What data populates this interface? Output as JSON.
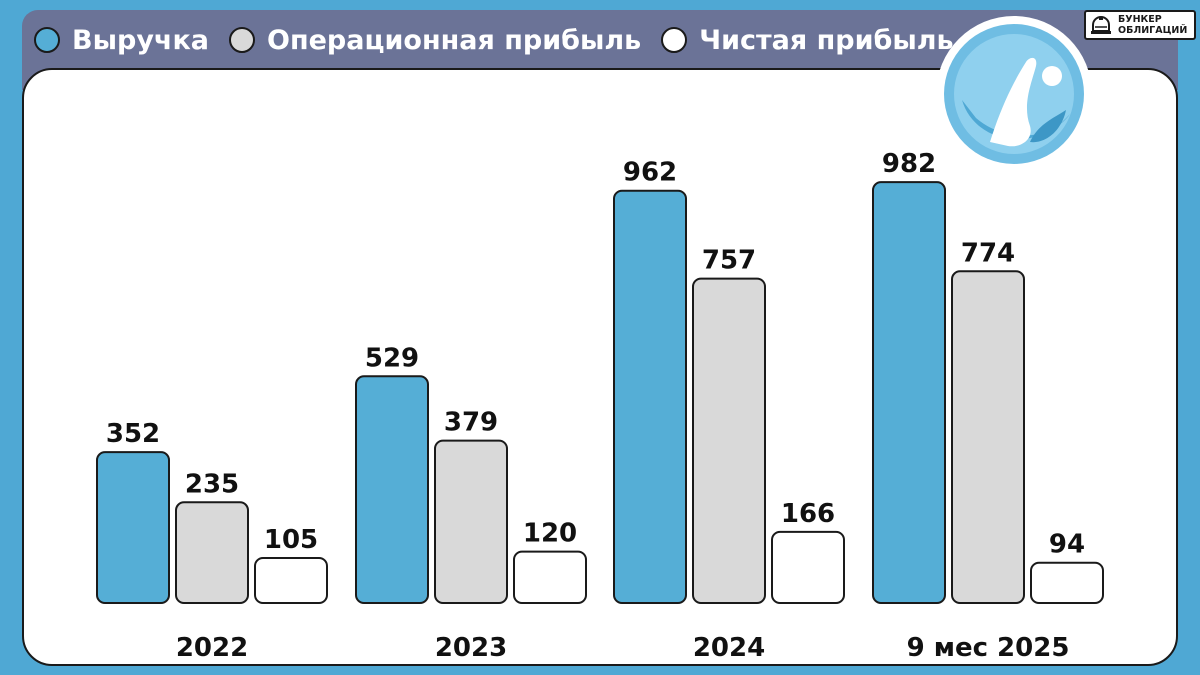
{
  "brand": {
    "line1": "БУНКЕР",
    "line2": "ОБЛИГАЦИЙ"
  },
  "colors": {
    "background": "#4fa8d4",
    "header": "#6b7397",
    "revenue": "#55aed6",
    "operating": "#d9d9d9",
    "net": "#ffffff"
  },
  "chart_data": {
    "type": "bar",
    "categories": [
      "2022",
      "2023",
      "2024",
      "9 мес 2025"
    ],
    "series": [
      {
        "name": "Выручка",
        "values": [
          352,
          529,
          962,
          982
        ],
        "color": "#55aed6"
      },
      {
        "name": "Операционная прибыль",
        "values": [
          235,
          379,
          757,
          774
        ],
        "color": "#d9d9d9"
      },
      {
        "name": "Чистая прибыль",
        "values": [
          105,
          120,
          166,
          94
        ],
        "color": "#ffffff"
      }
    ],
    "title": "",
    "xlabel": "",
    "ylabel": "",
    "ylim": [
      0,
      1000
    ],
    "grid": false,
    "legend": "top-left",
    "data_labels": true
  }
}
